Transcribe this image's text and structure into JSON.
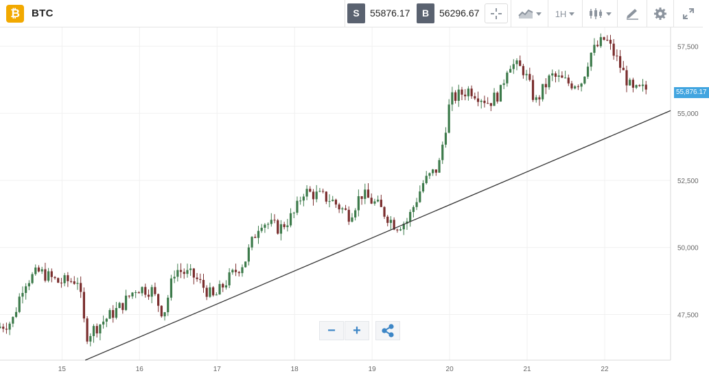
{
  "header": {
    "logo_glyph": "₿",
    "symbol": "BTC",
    "sell_tag": "S",
    "sell_price": "55876.17",
    "buy_tag": "B",
    "buy_price": "56296.67",
    "timeframe": "1H"
  },
  "current_price_label": "55,876.17",
  "controls": {
    "zoom_out": "−",
    "zoom_in": "+"
  },
  "colors": {
    "up": "#3c7a4a",
    "down": "#7a2d2d",
    "trendline": "#333333",
    "price_flag": "#42a5e0",
    "logo": "#f2a900"
  },
  "icons": [
    "crosshair-icon",
    "chart-type-icon",
    "candles-icon",
    "drawing-icon",
    "gear-icon",
    "fullscreen-icon",
    "share-icon"
  ],
  "chart_data": {
    "type": "candlestick",
    "x_ticks": [
      "15",
      "16",
      "17",
      "18",
      "19",
      "20",
      "21",
      "22"
    ],
    "y_ticks": [
      "47,500",
      "50,000",
      "52,500",
      "55,000",
      "57,500"
    ],
    "y_tick_values": [
      47500,
      50000,
      52500,
      55000,
      57500
    ],
    "ylim": [
      45800,
      58200
    ],
    "xlim": [
      14.2,
      22.85
    ],
    "current_price": 55876.17,
    "trendline": {
      "from": [
        15.3,
        45800
      ],
      "to": [
        22.85,
        55100
      ]
    },
    "anchors": [
      [
        14.2,
        47000
      ],
      [
        14.4,
        47250
      ],
      [
        14.55,
        48700
      ],
      [
        14.75,
        49100
      ],
      [
        15.0,
        48700
      ],
      [
        15.25,
        48800
      ],
      [
        15.35,
        46700
      ],
      [
        15.55,
        47200
      ],
      [
        15.8,
        47800
      ],
      [
        16.0,
        48500
      ],
      [
        16.2,
        48400
      ],
      [
        16.35,
        47500
      ],
      [
        16.5,
        49200
      ],
      [
        16.75,
        48900
      ],
      [
        17.0,
        48100
      ],
      [
        17.15,
        48700
      ],
      [
        17.4,
        49500
      ],
      [
        17.6,
        51000
      ],
      [
        17.85,
        50700
      ],
      [
        18.05,
        51300
      ],
      [
        18.15,
        52100
      ],
      [
        18.5,
        51800
      ],
      [
        18.75,
        51200
      ],
      [
        18.9,
        52000
      ],
      [
        19.1,
        51600
      ],
      [
        19.35,
        50800
      ],
      [
        19.5,
        51000
      ],
      [
        19.7,
        52400
      ],
      [
        19.9,
        53000
      ],
      [
        20.05,
        55500
      ],
      [
        20.3,
        55900
      ],
      [
        20.55,
        55400
      ],
      [
        20.7,
        55800
      ],
      [
        20.8,
        56900
      ],
      [
        21.0,
        56600
      ],
      [
        21.15,
        55400
      ],
      [
        21.35,
        56400
      ],
      [
        21.6,
        56100
      ],
      [
        21.75,
        56200
      ],
      [
        21.85,
        57200
      ],
      [
        22.05,
        57800
      ],
      [
        22.2,
        57000
      ],
      [
        22.4,
        55800
      ],
      [
        22.55,
        55900
      ]
    ]
  }
}
